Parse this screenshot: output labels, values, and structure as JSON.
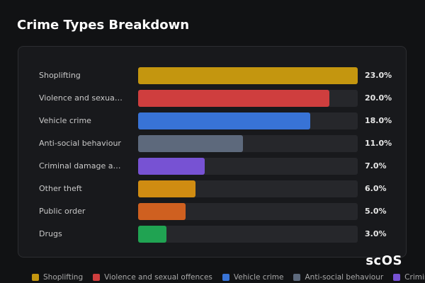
{
  "chart_data": {
    "type": "bar",
    "orientation": "horizontal",
    "title": "Crime Types Breakdown",
    "categories": [
      "Shoplifting",
      "Violence and sexual offences",
      "Vehicle crime",
      "Anti-social behaviour",
      "Criminal damage and arson",
      "Other theft",
      "Public order",
      "Drugs"
    ],
    "values": [
      23,
      20,
      18,
      11,
      7,
      6,
      5,
      3
    ],
    "value_labels": [
      "23.0%",
      "20.0%",
      "18.0%",
      "11.0%",
      "7.0%",
      "6.0%",
      "5.0%",
      "3.0%"
    ],
    "colors": [
      "#c4960f",
      "#cf3e3e",
      "#3873d6",
      "#5d697c",
      "#7752d3",
      "#d08c12",
      "#cf6020",
      "#20a352"
    ],
    "xlim": [
      0,
      23
    ],
    "legend": "bottom"
  },
  "watermark": "scOS"
}
